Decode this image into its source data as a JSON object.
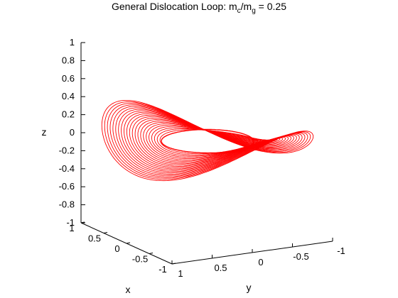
{
  "chart_data": {
    "type": "line",
    "title": {
      "prefix": "General Dislocation Loop: m",
      "sub1": "c",
      "middle": "/m",
      "sub2": "g",
      "suffix": " = 0.25"
    },
    "xlabel": "x",
    "ylabel": "y",
    "zlabel": "z",
    "xlim": [
      -1,
      1
    ],
    "ylim": [
      -1,
      1
    ],
    "zlim": [
      -1,
      1
    ],
    "x_ticks": [
      "1",
      "0.5",
      "0",
      "-0.5",
      "-1"
    ],
    "y_ticks": [
      "1",
      "0.5",
      "0",
      "-0.5",
      "-1"
    ],
    "z_ticks": [
      "1",
      "0.8",
      "0.6",
      "0.4",
      "0.2",
      "0",
      "-0.2",
      "-0.4",
      "-0.6",
      "-0.8",
      "-1"
    ],
    "line_color": "#ff0000",
    "loop_radius": 0.5,
    "contour_count": 22,
    "grid": false
  }
}
